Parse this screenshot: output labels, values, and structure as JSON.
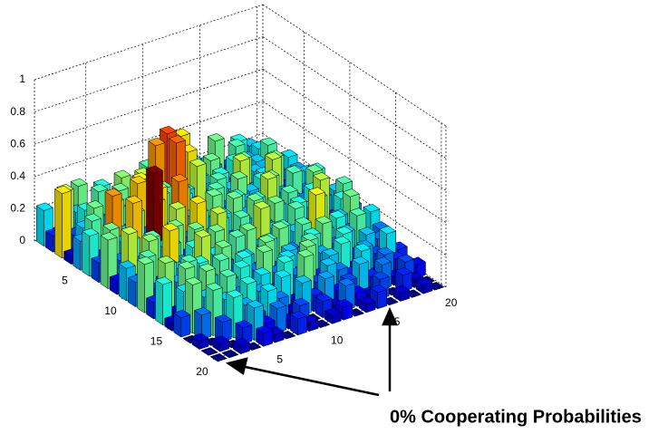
{
  "chart_data": {
    "type": "bar3d",
    "annotation": "0% Cooperating Probabilities",
    "xlim": [
      0.5,
      20.5
    ],
    "xticks": [
      5,
      10,
      15,
      20
    ],
    "ylim": [
      0.5,
      20.5
    ],
    "yticks": [
      5,
      10,
      15,
      20
    ],
    "zlim": [
      0,
      1
    ],
    "zticks": [
      0,
      0.2,
      0.4,
      0.6,
      0.8,
      1
    ],
    "grid": true,
    "colormap": "jet",
    "values": [
      [
        0.22,
        0.05,
        0.18,
        0.3,
        0.12,
        0.25,
        0.08,
        0.2,
        0.15,
        0.28,
        0.1,
        0.35,
        0.4,
        0.22,
        0.18,
        0.3,
        0.12,
        0.25,
        0.2,
        0.15
      ],
      [
        0.1,
        0.35,
        0.2,
        0.05,
        0.28,
        0.15,
        0.32,
        0.1,
        0.22,
        0.45,
        0.5,
        0.3,
        0.25,
        0.12,
        0.2,
        0.08,
        0.28,
        0.18,
        0.22,
        0.1
      ],
      [
        0.4,
        0.12,
        0.25,
        0.18,
        0.08,
        0.3,
        0.2,
        0.35,
        0.15,
        0.1,
        0.48,
        0.4,
        0.22,
        0.3,
        0.15,
        0.25,
        0.1,
        0.2,
        0.28,
        0.05
      ],
      [
        0.05,
        0.2,
        0.3,
        0.1,
        0.25,
        0.12,
        0.38,
        0.2,
        0.28,
        0.15,
        0.22,
        0.35,
        0.18,
        0.25,
        0.1,
        0.3,
        0.2,
        0.12,
        0.15,
        0.22
      ],
      [
        0.18,
        0.28,
        0.1,
        0.35,
        0.15,
        0.42,
        0.2,
        0.3,
        0.12,
        0.25,
        0.18,
        0.1,
        0.28,
        0.2,
        0.35,
        0.15,
        0.22,
        0.3,
        0.1,
        0.18
      ],
      [
        0.25,
        0.1,
        0.45,
        0.2,
        0.3,
        0.15,
        0.4,
        0.1,
        0.35,
        0.2,
        0.12,
        0.28,
        0.15,
        0.3,
        0.2,
        0.25,
        0.35,
        0.1,
        0.22,
        0.2
      ],
      [
        0.12,
        0.3,
        0.2,
        0.42,
        0.1,
        0.38,
        0.15,
        0.46,
        0.22,
        0.18,
        0.3,
        0.1,
        0.25,
        0.2,
        0.12,
        0.3,
        0.18,
        0.28,
        0.15,
        0.25
      ],
      [
        0.3,
        0.15,
        0.25,
        0.1,
        0.62,
        0.2,
        0.35,
        0.15,
        0.28,
        0.1,
        0.22,
        0.3,
        0.18,
        0.25,
        0.35,
        0.1,
        0.2,
        0.15,
        0.3,
        0.12
      ],
      [
        0.08,
        0.35,
        0.15,
        0.28,
        0.2,
        0.3,
        0.1,
        0.4,
        0.18,
        0.25,
        0.12,
        0.2,
        0.3,
        0.15,
        0.22,
        0.28,
        0.1,
        0.25,
        0.18,
        0.2
      ],
      [
        0.2,
        0.1,
        0.32,
        0.15,
        0.25,
        0.12,
        0.3,
        0.2,
        0.35,
        0.1,
        0.28,
        0.15,
        0.2,
        0.3,
        0.12,
        0.25,
        0.2,
        0.35,
        0.1,
        0.28
      ],
      [
        0.15,
        0.28,
        0.1,
        0.4,
        0.18,
        0.25,
        0.12,
        0.3,
        0.15,
        0.22,
        0.1,
        0.35,
        0.2,
        0.12,
        0.28,
        0.15,
        0.3,
        0.08,
        0.25,
        0.18
      ],
      [
        0.3,
        0.12,
        0.25,
        0.2,
        0.1,
        0.35,
        0.22,
        0.15,
        0.28,
        0.3,
        0.18,
        0.1,
        0.25,
        0.2,
        0.15,
        0.38,
        0.12,
        0.2,
        0.3,
        0.1
      ],
      [
        0.1,
        0.32,
        0.18,
        0.28,
        0.25,
        0.15,
        0.3,
        0.12,
        0.2,
        0.1,
        0.25,
        0.3,
        0.15,
        0.28,
        0.1,
        0.2,
        0.25,
        0.15,
        0.12,
        0.22
      ],
      [
        0.25,
        0.05,
        0.3,
        0.12,
        0.2,
        0.28,
        0.1,
        0.25,
        0.15,
        0.3,
        0.12,
        0.2,
        0.1,
        0.25,
        0.3,
        0.15,
        0.2,
        0.28,
        0.1,
        0.15
      ],
      [
        0.05,
        0.22,
        0.15,
        0.3,
        0.1,
        0.2,
        0.25,
        0.08,
        0.3,
        0.15,
        0.22,
        0.1,
        0.28,
        0.18,
        0.12,
        0.25,
        0.1,
        0.2,
        0.15,
        0.08
      ],
      [
        0.12,
        0.3,
        0.2,
        0.1,
        0.28,
        0.15,
        0.05,
        0.22,
        0.1,
        0.25,
        0.15,
        0.3,
        0.1,
        0.2,
        0.25,
        0.08,
        0.18,
        0.12,
        0.22,
        0.1
      ],
      [
        0,
        0.15,
        0.28,
        0.2,
        0.12,
        0.25,
        0.18,
        0.1,
        0.22,
        0.05,
        0.3,
        0.12,
        0.2,
        0.15,
        0.1,
        0.22,
        0.05,
        0.15,
        0.1,
        0.05
      ],
      [
        0.05,
        0,
        0.12,
        0.25,
        0.18,
        0.1,
        0.22,
        0.15,
        0.05,
        0.2,
        0.1,
        0.18,
        0.08,
        0.12,
        0.2,
        0.1,
        0.15,
        0.05,
        0.12,
        0.08
      ],
      [
        0,
        0.05,
        0,
        0.1,
        0.2,
        0.08,
        0.15,
        0.05,
        0.12,
        0,
        0.1,
        0.05,
        0.15,
        0.08,
        0.05,
        0.12,
        0,
        0.1,
        0.05,
        0
      ],
      [
        0,
        0,
        0.05,
        0,
        0.08,
        0.05,
        0,
        0.1,
        0.05,
        0,
        0.05,
        0.08,
        0,
        0.05,
        0.1,
        0,
        0.05,
        0,
        0.05,
        0
      ]
    ]
  }
}
